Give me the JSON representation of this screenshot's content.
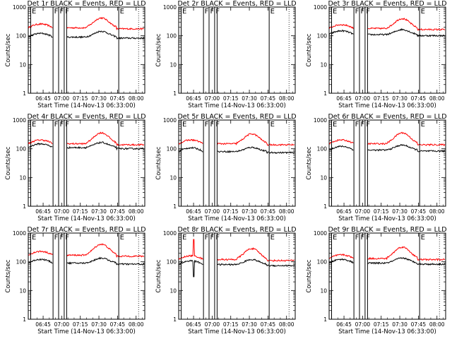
{
  "chart_data": {
    "type": "line",
    "layout": {
      "rows": 3,
      "cols": 3
    },
    "xlabel": "Start Time (14-Nov-13 06:33:00)",
    "ylabel": "Counts/sec",
    "x_ticks": [
      "06:45",
      "07:00",
      "07:15",
      "07:30",
      "07:45",
      "08:00"
    ],
    "x_tick_minutes": [
      45,
      60,
      75,
      90,
      105,
      120
    ],
    "x_range_minutes": [
      33,
      127
    ],
    "y_scale": "log",
    "ylim": [
      1,
      1000
    ],
    "y_ticks": [
      "1",
      "10",
      "100",
      "1000"
    ],
    "y_tick_values": [
      1,
      10,
      100,
      1000
    ],
    "series_colors": {
      "events": "#000000",
      "lld": "#ff0000"
    },
    "marker_labels": {
      "E": "E",
      "F": "F"
    },
    "panels": [
      {
        "title": "Det 1r BLACK = Events, RED = LLD",
        "markers": [
          {
            "label": "E",
            "t": 35
          },
          {
            "label": "F",
            "t": 53
          },
          {
            "label": "F",
            "t": 57.5
          },
          {
            "label": "F",
            "t": 62
          },
          {
            "label": "E",
            "t": 106
          }
        ],
        "extra_lines": [
          64
        ],
        "events": {
          "base": 90,
          "hump_amp": 1.6,
          "gap": [
            53,
            64
          ]
        },
        "lld": {
          "base": 190,
          "hump_amp": 2.2,
          "gap": [
            53,
            64
          ]
        }
      },
      {
        "title": "Det 2r BLACK = Events, RED = LLD",
        "markers": [
          {
            "label": "E",
            "t": 35
          },
          {
            "label": "F",
            "t": 53
          },
          {
            "label": "F",
            "t": 57.5
          },
          {
            "label": "F",
            "t": 62
          },
          {
            "label": "E",
            "t": 106
          }
        ],
        "extra_lines": [
          64
        ],
        "events": null,
        "lld": null
      },
      {
        "title": "Det 3r BLACK = Events, RED = LLD",
        "markers": [
          {
            "label": "E",
            "t": 35
          },
          {
            "label": "F",
            "t": 53
          },
          {
            "label": "F",
            "t": 57.5
          },
          {
            "label": "F",
            "t": 62
          },
          {
            "label": "E",
            "t": 106
          }
        ],
        "extra_lines": [
          64
        ],
        "events": {
          "base": 110,
          "hump_amp": 1.5,
          "gap": [
            53,
            64
          ]
        },
        "lld": {
          "base": 180,
          "hump_amp": 2.2,
          "gap": [
            53,
            64
          ]
        }
      },
      {
        "title": "Det 4r BLACK = Events, RED = LLD",
        "markers": [
          {
            "label": "E",
            "t": 35
          },
          {
            "label": "F",
            "t": 53
          },
          {
            "label": "F",
            "t": 57.5
          },
          {
            "label": "F",
            "t": 62
          },
          {
            "label": "E",
            "t": 106
          }
        ],
        "extra_lines": [
          64
        ],
        "events": {
          "base": 110,
          "hump_amp": 1.5,
          "gap": [
            53,
            64
          ]
        },
        "lld": {
          "base": 150,
          "hump_amp": 2.4,
          "gap": [
            53,
            64
          ]
        }
      },
      {
        "title": "Det 5r BLACK = Events, RED = LLD",
        "markers": [
          {
            "label": "E",
            "t": 35
          },
          {
            "label": "F",
            "t": 53
          },
          {
            "label": "F",
            "t": 57.5
          },
          {
            "label": "F",
            "t": 62
          },
          {
            "label": "E",
            "t": 106
          }
        ],
        "extra_lines": [
          64
        ],
        "events": {
          "base": 80,
          "hump_amp": 1.4,
          "gap": [
            53,
            64
          ]
        },
        "lld": {
          "base": 150,
          "hump_amp": 2.2,
          "gap": [
            53,
            64
          ]
        }
      },
      {
        "title": "Det 6r BLACK = Events, RED = LLD",
        "markers": [
          {
            "label": "E",
            "t": 35
          },
          {
            "label": "F",
            "t": 53
          },
          {
            "label": "F",
            "t": 57.5
          },
          {
            "label": "F",
            "t": 62
          },
          {
            "label": "E",
            "t": 106
          }
        ],
        "extra_lines": [
          64
        ],
        "events": {
          "base": 90,
          "hump_amp": 1.5,
          "gap": [
            53,
            64
          ]
        },
        "lld": {
          "base": 150,
          "hump_amp": 2.4,
          "gap": [
            53,
            64
          ]
        }
      },
      {
        "title": "Det 7r BLACK = Events, RED = LLD",
        "markers": [
          {
            "label": "E",
            "t": 35
          },
          {
            "label": "F",
            "t": 53
          },
          {
            "label": "F",
            "t": 57.5
          },
          {
            "label": "F",
            "t": 62
          },
          {
            "label": "E",
            "t": 106
          }
        ],
        "extra_lines": [
          64
        ],
        "events": {
          "base": 90,
          "hump_amp": 1.5,
          "gap": [
            53,
            64
          ]
        },
        "lld": {
          "base": 170,
          "hump_amp": 2.4,
          "gap": [
            53,
            64
          ]
        }
      },
      {
        "title": "Det 8r BLACK = Events, RED = LLD",
        "markers": [
          {
            "label": "E",
            "t": 35
          },
          {
            "label": "F",
            "t": 53
          },
          {
            "label": "F",
            "t": 57.5
          },
          {
            "label": "F",
            "t": 62
          },
          {
            "label": "E",
            "t": 106
          }
        ],
        "extra_lines": [
          64
        ],
        "events": {
          "base": 80,
          "hump_amp": 1.5,
          "gap": [
            53,
            64
          ],
          "spike": {
            "t": 45,
            "value": 30
          }
        },
        "lld": {
          "base": 120,
          "hump_amp": 2.4,
          "gap": [
            53,
            64
          ],
          "spike": {
            "t": 45,
            "value": 600
          }
        }
      },
      {
        "title": "Det 9r BLACK = Events, RED = LLD",
        "markers": [
          {
            "label": "E",
            "t": 35
          },
          {
            "label": "F",
            "t": 53
          },
          {
            "label": "F",
            "t": 57.5
          },
          {
            "label": "F",
            "t": 62
          },
          {
            "label": "E",
            "t": 106
          }
        ],
        "extra_lines": [
          64
        ],
        "events": {
          "base": 90,
          "hump_amp": 1.5,
          "gap": [
            53,
            64
          ]
        },
        "lld": {
          "base": 130,
          "hump_amp": 2.5,
          "gap": [
            53,
            64
          ]
        }
      }
    ]
  }
}
